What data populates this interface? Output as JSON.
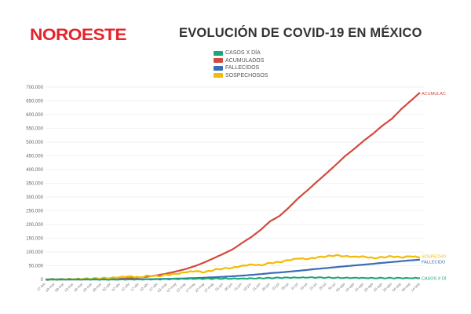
{
  "header": {
    "logo_text": "NOROESTE",
    "title": "EVOLUCIÓN DE COVID-19 EN MÉXICO"
  },
  "colors": {
    "logo": "#e4242b",
    "casos": "#1aa67a",
    "acumulados": "#d24a3c",
    "fallecidos": "#3a6db5",
    "sospechosos": "#f2bb05",
    "grid": "#eeeeee"
  },
  "chart_data": {
    "type": "line",
    "title": "EVOLUCIÓN DE COVID-19 EN MÉXICO",
    "xlabel": "",
    "ylabel": "",
    "ylim": [
      0,
      700000
    ],
    "yticks": [
      0,
      50000,
      100000,
      150000,
      200000,
      250000,
      300000,
      350000,
      400000,
      450000,
      500000,
      550000,
      600000,
      650000,
      700000
    ],
    "ytick_labels": [
      "0",
      "50,000",
      "100,000",
      "150,000",
      "200,000",
      "250,000",
      "300,000",
      "350,000",
      "400,000",
      "450,000",
      "500,000",
      "550,000",
      "600,000",
      "650,000",
      "700,000"
    ],
    "grid": true,
    "legend_position": "top-center",
    "categories": [
      "27-feb",
      "03-mar",
      "08-mar",
      "13-mar",
      "18-mar",
      "23-mar",
      "28-mar",
      "02-abr",
      "07-abr",
      "12-abr",
      "17-abr",
      "22-abr",
      "27-abr",
      "02-may",
      "07-may",
      "12-may",
      "17-may",
      "22-may",
      "27-may",
      "01-jun",
      "06-jun",
      "11-jun",
      "16-jun",
      "21-jun",
      "26-jun",
      "01-jul",
      "06-jul",
      "11-jul",
      "16-jul",
      "21-jul",
      "26-jul",
      "31-jul",
      "05-ago",
      "10-ago",
      "15-ago",
      "20-ago",
      "25-ago",
      "30-ago",
      "04-sep",
      "09-sep",
      "14-sep"
    ],
    "series": [
      {
        "name": "CASOS X DÍA",
        "end_label": "CASOS X DÍ",
        "color": "#1aa67a",
        "values": [
          0,
          1,
          5,
          10,
          40,
          100,
          150,
          250,
          350,
          450,
          600,
          700,
          800,
          1200,
          1500,
          1800,
          2200,
          2600,
          3000,
          3200,
          3500,
          3800,
          4200,
          4800,
          5500,
          6000,
          6200,
          6500,
          6800,
          7000,
          6500,
          6300,
          6000,
          6200,
          5800,
          5500,
          5300,
          5200,
          4800,
          4500,
          5000
        ]
      },
      {
        "name": "ACUMULADOS",
        "end_label": "ACUMULAC",
        "color": "#d24a3c",
        "values": [
          1,
          5,
          10,
          30,
          120,
          370,
          850,
          1500,
          2800,
          4700,
          6900,
          10500,
          15500,
          22000,
          29600,
          38300,
          49200,
          62500,
          78000,
          93400,
          110000,
          133000,
          155000,
          181000,
          212000,
          231000,
          262000,
          296000,
          325000,
          356000,
          386000,
          417000,
          449000,
          476000,
          505000,
          531000,
          560000,
          585000,
          620000,
          650000,
          680000
        ]
      },
      {
        "name": "FALLECIDOS",
        "end_label": "FALLECIDO",
        "color": "#3a6db5",
        "values": [
          0,
          0,
          0,
          0,
          0,
          2,
          16,
          50,
          150,
          300,
          550,
          900,
          1400,
          2200,
          3000,
          3900,
          5000,
          6500,
          8100,
          9800,
          11700,
          14000,
          16500,
          19500,
          23000,
          25500,
          28500,
          31500,
          35000,
          38500,
          41500,
          45000,
          48000,
          51000,
          54000,
          57000,
          60500,
          63500,
          66500,
          69500,
          72000
        ]
      },
      {
        "name": "SOSPECHOSOS",
        "end_label": "SOSPECHO",
        "color": "#f2bb05",
        "values": [
          0,
          100,
          500,
          1000,
          2000,
          3000,
          4500,
          6000,
          9000,
          12000,
          8000,
          14000,
          12000,
          17000,
          20000,
          26000,
          30000,
          26000,
          35000,
          40000,
          43000,
          50000,
          55000,
          52000,
          60000,
          63000,
          70000,
          76000,
          74000,
          80000,
          84000,
          88000,
          85000,
          83000,
          84000,
          78000,
          81000,
          84000,
          80000,
          84000,
          80000
        ]
      }
    ]
  }
}
